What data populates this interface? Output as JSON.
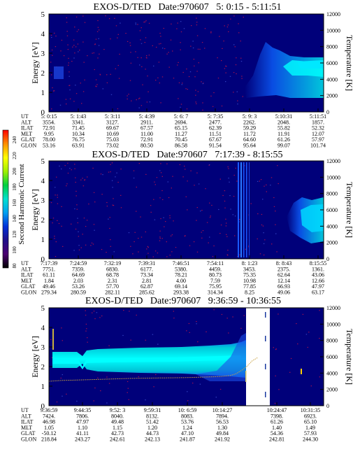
{
  "colors": {
    "background": "#00007a",
    "spectrum_high": "#00c8d8",
    "spectrum_peak": "#00ffff",
    "spectrum_mid": "#0a64f0",
    "speckle": "#a01050",
    "temperature_line": "#c8a040"
  },
  "colorbar": {
    "label": "Second Harmonic Current",
    "ticks": [
      "240",
      "220",
      "200",
      "180",
      "160",
      "140",
      "120",
      "100",
      "80"
    ],
    "stops": [
      "#000000",
      "#4b0070",
      "#20108a",
      "#0030d8",
      "#00a0f0",
      "#00e0d0",
      "#00d040",
      "#a0f000",
      "#ffff00",
      "#ff9000",
      "#ff0000"
    ]
  },
  "chart_data": [
    {
      "type": "heatmap",
      "title": "EXOS-D/TED   Date:970607   5: 0:15 - 5:11:51",
      "ylabel": "Energy [eV]",
      "y2label": "Temperature [K]",
      "ylim": [
        0,
        5
      ],
      "y2lim": [
        0,
        12000
      ],
      "yticks": [
        "0",
        "1",
        "2",
        "3",
        "4",
        "5"
      ],
      "y2ticks": [
        "0",
        "2000",
        "4000",
        "6000",
        "8000",
        "10000",
        "12000"
      ],
      "ephemeris_labels": [
        "UT",
        "ALT",
        "ILAT",
        "MLT",
        "GLAT",
        "GLON"
      ],
      "columns": [
        [
          "5: 0:15",
          "3554.",
          "72.91",
          "9.95",
          "78.00",
          "53.16"
        ],
        [
          "5: 1:43",
          "3341.",
          "71.45",
          "10.34",
          "76.75",
          "63.91"
        ],
        [
          "5: 3:11",
          "3127.",
          "69.67",
          "10.69",
          "75.03",
          "73.02"
        ],
        [
          "5: 4:39",
          "2911.",
          "67.57",
          "11.00",
          "72.91",
          "80.50"
        ],
        [
          "5: 6: 7",
          "2694.",
          "65.15",
          "11.27",
          "70.45",
          "86.58"
        ],
        [
          "5: 7:35",
          "2477.",
          "62.39",
          "11.51",
          "67.67",
          "91.54"
        ],
        [
          "5: 9: 3",
          "2262.",
          "59.29",
          "11.72",
          "64.60",
          "95.64"
        ],
        [
          "5:10:31",
          "2048.",
          "55.82",
          "11.91",
          "61.26",
          "99.07"
        ],
        [
          "5:11:51",
          "1857.",
          "52.32",
          "12.07",
          "57.97",
          "101.74"
        ]
      ]
    },
    {
      "type": "heatmap",
      "title": "EXOS-D/TED   Date:970607   7:17:39 - 8:15:55",
      "ylabel": "Energy [eV]",
      "y2label": "Temperature [K]",
      "ylim": [
        0,
        5
      ],
      "y2lim": [
        0,
        12000
      ],
      "yticks": [
        "0",
        "1",
        "2",
        "3",
        "4",
        "5"
      ],
      "y2ticks": [
        "0",
        "2000",
        "4000",
        "6000",
        "8000",
        "10000",
        "12000"
      ],
      "ephemeris_labels": [
        "UT",
        "ALT",
        "ILAT",
        "MLT",
        "GLAT",
        "GLON"
      ],
      "columns": [
        [
          "7:17:39",
          "7751.",
          "61.11",
          "1.84",
          "49.46",
          "279.34"
        ],
        [
          "7:24:59",
          "7359.",
          "64.69",
          "2.03",
          "53.26",
          "280.59"
        ],
        [
          "7:32:19",
          "6830.",
          "68.78",
          "2.31",
          "57.70",
          "282.11"
        ],
        [
          "7:39:31",
          "6177.",
          "73.34",
          "2.81",
          "62.87",
          "285.62"
        ],
        [
          "7:46:51",
          "5380.",
          "78.21",
          "4.00",
          "69.14",
          "293.38"
        ],
        [
          "7:54:11",
          "4459.",
          "80.73",
          "7.59",
          "75.95",
          "314.34"
        ],
        [
          "8: 1:23",
          "3453.",
          "75.35",
          "10.98",
          "77.85",
          "8.25"
        ],
        [
          "8: 8:43",
          "2375.",
          "62.64",
          "12.14",
          "66.93",
          "49.06"
        ],
        [
          "8:15:55",
          "1361.",
          "43.06",
          "12.66",
          "47.97",
          "63.17"
        ]
      ]
    },
    {
      "type": "heatmap",
      "title": "EXOS-D/TED   Date:970607   9:36:59 - 10:36:55",
      "ylabel": "Energy [eV]",
      "y2label": "Temperature [K]",
      "ylim": [
        0,
        5
      ],
      "y2lim": [
        0,
        12000
      ],
      "yticks": [
        "0",
        "1",
        "2",
        "3",
        "4",
        "5"
      ],
      "y2ticks": [
        "0",
        "2000",
        "4000",
        "6000",
        "8000",
        "10000",
        "12000"
      ],
      "ephemeris_labels": [
        "UT",
        "ALT",
        "ILAT",
        "MLT",
        "GLAT",
        "GLON"
      ],
      "columns": [
        [
          "9:36:59",
          "7424.",
          "46.98",
          "1.05",
          "-50.12",
          "218.84"
        ],
        [
          "9:44:35",
          "7806.",
          "47.97",
          "1.10",
          "41.11",
          "243.27"
        ],
        [
          "9:52: 3",
          "8040.",
          "49.48",
          "1.15",
          "42.73",
          "242.61"
        ],
        [
          "9:59:31",
          "8132.",
          "51.42",
          "1.20",
          "44.73",
          "242.13"
        ],
        [
          "10: 6:59",
          "8083.",
          "53.76",
          "1.24",
          "47.10",
          "241.87"
        ],
        [
          "10:14:27",
          "7894.",
          "56.53",
          "1.30",
          "49.84",
          "241.92"
        ],
        [
          "10:24:47",
          "7398.",
          "61.26",
          "1.40",
          "54.36",
          "242.81"
        ],
        [
          "10:31:35",
          "6923.",
          "65.10",
          "1.49",
          "57.93",
          "244.30"
        ]
      ],
      "temperature_series": {
        "x": [
          0.0,
          0.05,
          0.1,
          0.15,
          0.2,
          0.25,
          0.3,
          0.35,
          0.4,
          0.45,
          0.5,
          0.55,
          0.6,
          0.63,
          0.66,
          0.68,
          0.7,
          0.72,
          0.74,
          0.76
        ],
        "y": [
          3000,
          3100,
          3150,
          3200,
          3250,
          3300,
          3350,
          3380,
          3400,
          3420,
          3450,
          3500,
          3550,
          3600,
          3700,
          3900,
          4300,
          4800,
          5500,
          5900
        ]
      }
    }
  ]
}
